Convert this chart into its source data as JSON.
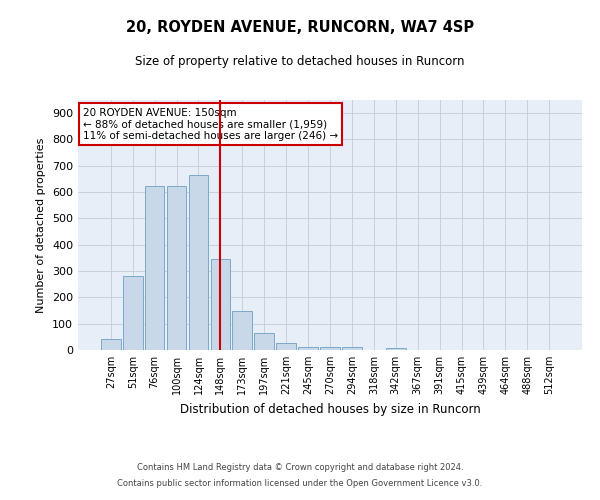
{
  "title1": "20, ROYDEN AVENUE, RUNCORN, WA7 4SP",
  "title2": "Size of property relative to detached houses in Runcorn",
  "xlabel": "Distribution of detached houses by size in Runcorn",
  "ylabel": "Number of detached properties",
  "categories": [
    "27sqm",
    "51sqm",
    "76sqm",
    "100sqm",
    "124sqm",
    "148sqm",
    "173sqm",
    "197sqm",
    "221sqm",
    "245sqm",
    "270sqm",
    "294sqm",
    "318sqm",
    "342sqm",
    "367sqm",
    "391sqm",
    "415sqm",
    "439sqm",
    "464sqm",
    "488sqm",
    "512sqm"
  ],
  "values": [
    40,
    280,
    622,
    622,
    665,
    345,
    148,
    65,
    28,
    13,
    10,
    10,
    0,
    8,
    0,
    0,
    0,
    0,
    0,
    0,
    0
  ],
  "bar_color": "#c8d8e8",
  "bar_edge_color": "#7aaac8",
  "vline_x": 5,
  "vline_color": "#cc0000",
  "annotation_text": "20 ROYDEN AVENUE: 150sqm\n← 88% of detached houses are smaller (1,959)\n11% of semi-detached houses are larger (246) →",
  "annotation_box_color": "#ffffff",
  "annotation_box_edge": "#cc0000",
  "ylim": [
    0,
    950
  ],
  "yticks": [
    0,
    100,
    200,
    300,
    400,
    500,
    600,
    700,
    800,
    900
  ],
  "grid_color": "#c0ccd8",
  "bg_color": "#e8eef8",
  "footer1": "Contains HM Land Registry data © Crown copyright and database right 2024.",
  "footer2": "Contains public sector information licensed under the Open Government Licence v3.0."
}
